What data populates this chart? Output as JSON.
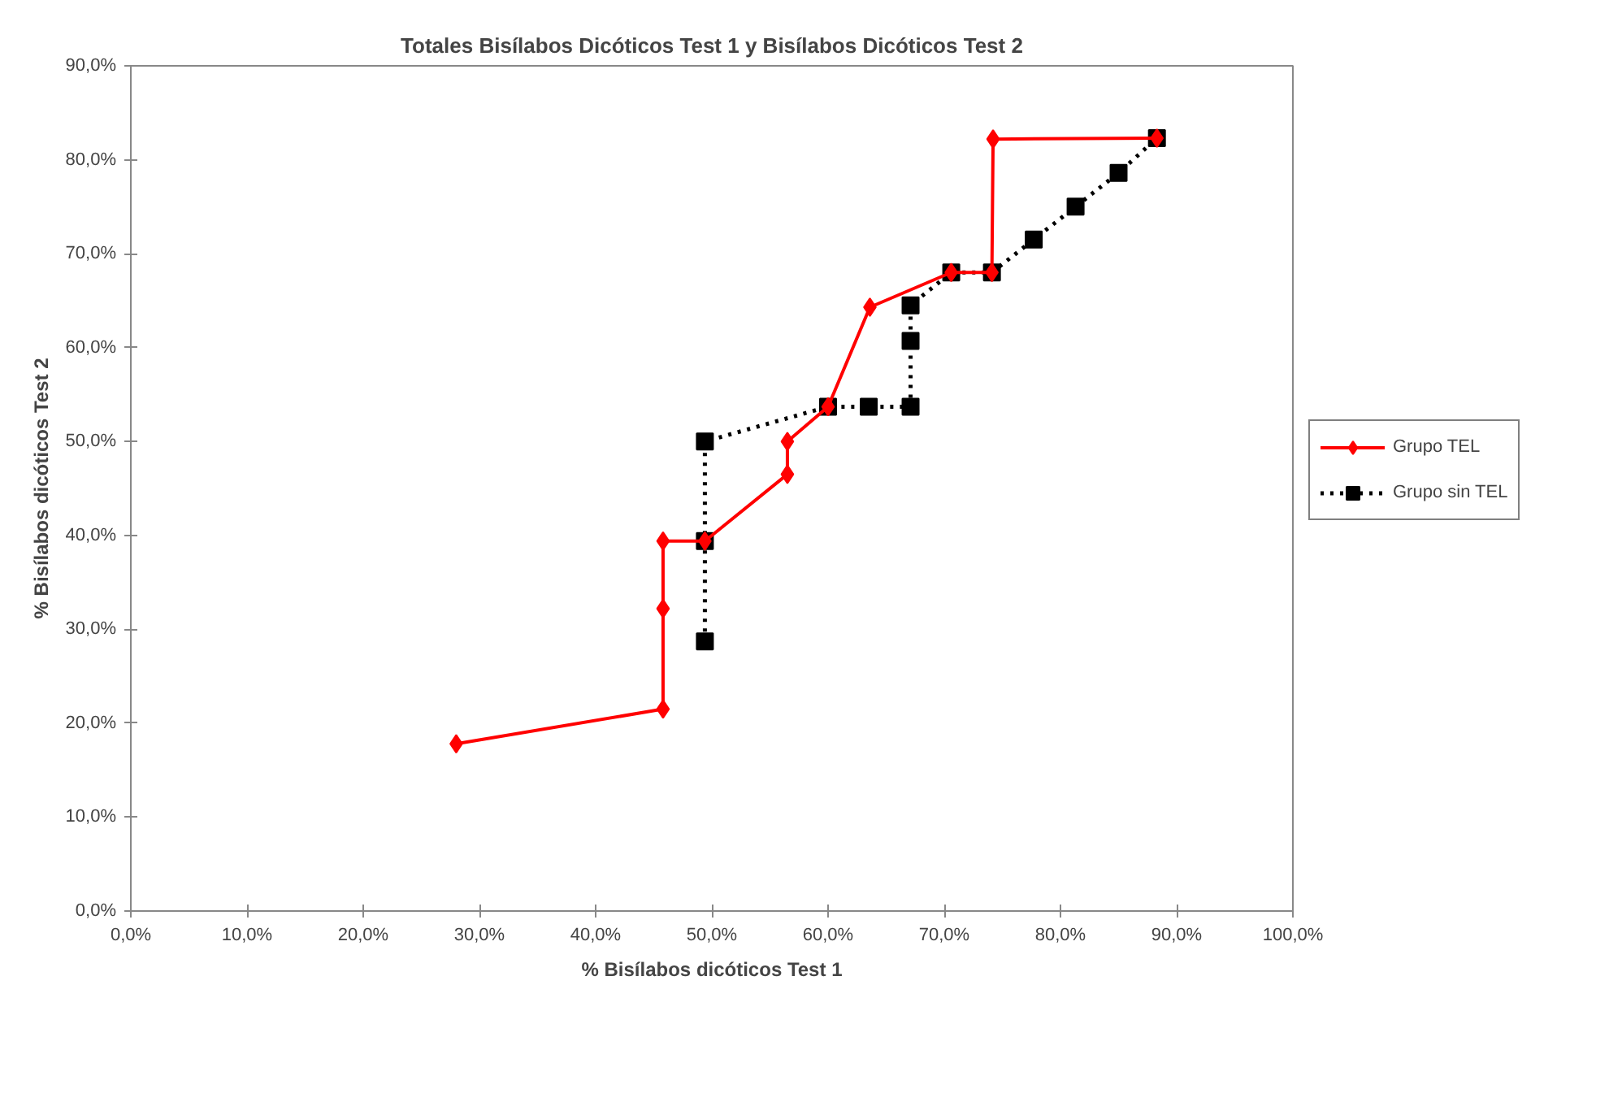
{
  "chart_data": {
    "type": "line",
    "title": "Totales Bisílabos Dicóticos Test 1 y Bisílabos Dicóticos Test 2",
    "xlabel": "% Bisílabos dicóticos Test 1",
    "ylabel": "% Bisílabos dicóticos Test 2",
    "xlim": [
      0,
      100
    ],
    "ylim": [
      0,
      90
    ],
    "xticks": [
      {
        "value": 0,
        "label": "0,0%"
      },
      {
        "value": 10,
        "label": "10,0%"
      },
      {
        "value": 20,
        "label": "20,0%"
      },
      {
        "value": 30,
        "label": "30,0%"
      },
      {
        "value": 40,
        "label": "40,0%"
      },
      {
        "value": 50,
        "label": "50,0%"
      },
      {
        "value": 60,
        "label": "60,0%"
      },
      {
        "value": 70,
        "label": "70,0%"
      },
      {
        "value": 80,
        "label": "80,0%"
      },
      {
        "value": 90,
        "label": "90,0%"
      },
      {
        "value": 100,
        "label": "100,0%"
      }
    ],
    "yticks": [
      {
        "value": 0,
        "label": "0,0%"
      },
      {
        "value": 10,
        "label": "10,0%"
      },
      {
        "value": 20,
        "label": "20,0%"
      },
      {
        "value": 30,
        "label": "30,0%"
      },
      {
        "value": 40,
        "label": "40,0%"
      },
      {
        "value": 50,
        "label": "50,0%"
      },
      {
        "value": 60,
        "label": "60,0%"
      },
      {
        "value": 70,
        "label": "70,0%"
      },
      {
        "value": 80,
        "label": "80,0%"
      },
      {
        "value": 90,
        "label": "90,0%"
      }
    ],
    "grid": false,
    "legend": "right",
    "series": [
      {
        "name": "Grupo TEL",
        "color": "#ff0000",
        "marker": "diamond",
        "line_style": "solid",
        "x": [
          28.0,
          45.8,
          45.8,
          45.8,
          49.4,
          56.5,
          56.5,
          60.0,
          63.6,
          70.6,
          74.1,
          74.2,
          88.3
        ],
        "values": [
          17.8,
          21.5,
          32.2,
          39.4,
          39.4,
          46.5,
          50.0,
          53.7,
          64.3,
          68.0,
          68.0,
          82.2,
          82.3
        ]
      },
      {
        "name": "Grupo sin TEL",
        "color": "#000000",
        "marker": "square",
        "line_style": "dotted",
        "x": [
          49.4,
          49.4,
          49.4,
          60.0,
          63.5,
          67.1,
          67.1,
          67.1,
          70.6,
          74.1,
          77.7,
          81.3,
          85.0,
          88.3
        ],
        "values": [
          28.7,
          39.4,
          50.0,
          53.7,
          53.7,
          53.7,
          60.7,
          64.5,
          68.0,
          68.0,
          71.5,
          75.0,
          78.6,
          82.3
        ]
      }
    ]
  }
}
